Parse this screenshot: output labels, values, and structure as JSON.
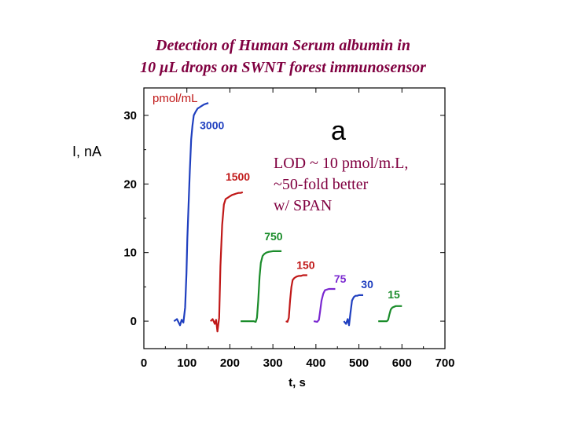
{
  "chart_data": {
    "type": "line",
    "title_lines": [
      "Detection of Human Serum albumin in",
      "10 μL drops on SWNT forest immunosensor"
    ],
    "xlabel": "t, s",
    "ylabel": "I, nA",
    "xlim": [
      0,
      700
    ],
    "ylim": [
      -4,
      34
    ],
    "xticks": [
      "0",
      "100",
      "200",
      "300",
      "400",
      "500",
      "600",
      "700"
    ],
    "yticks": [
      "0",
      "10",
      "20",
      "30"
    ],
    "panel_label": "a",
    "unit_label": "pmol/mL",
    "annotation_lines": [
      "LOD ~ 10 pmol/m.L,",
      "~50-fold better",
      "w/ SPAN"
    ],
    "annotation_color": "#800040",
    "series": [
      {
        "name": "3000",
        "color": "#1f3fbf",
        "label_x": 130,
        "label_y": 28,
        "x": [
          70,
          77,
          84,
          88,
          92,
          96,
          99,
          101,
          104,
          107,
          110,
          113,
          116,
          120,
          125,
          130,
          135,
          140,
          145,
          150
        ],
        "y": [
          0.0,
          0.3,
          -0.6,
          0.2,
          -0.2,
          2.0,
          7.0,
          12.0,
          17.0,
          22.0,
          26.5,
          28.5,
          30.0,
          30.5,
          31.0,
          31.2,
          31.4,
          31.6,
          31.7,
          31.8
        ]
      },
      {
        "name": "1500",
        "color": "#c01818",
        "label_x": 190,
        "label_y": 20.5,
        "x": [
          155,
          160,
          165,
          168,
          171,
          175,
          178,
          182,
          186,
          190,
          195,
          200,
          205,
          210,
          215,
          220,
          225,
          230
        ],
        "y": [
          0.0,
          0.3,
          -0.4,
          0.2,
          -1.5,
          0.5,
          8.0,
          14.0,
          17.0,
          17.8,
          18.0,
          18.2,
          18.4,
          18.5,
          18.6,
          18.7,
          18.7,
          18.8
        ]
      },
      {
        "name": "750",
        "color": "#1a8c2a",
        "label_x": 280,
        "label_y": 11.8,
        "x": [
          225,
          240,
          255,
          260,
          263,
          266,
          269,
          272,
          276,
          280,
          285,
          290,
          300,
          310,
          320
        ],
        "y": [
          0.0,
          0.0,
          0.0,
          -0.1,
          0.5,
          3.0,
          6.5,
          8.5,
          9.5,
          9.8,
          10.0,
          10.1,
          10.2,
          10.2,
          10.2
        ]
      },
      {
        "name": "150",
        "color": "#c01818",
        "label_x": 355,
        "label_y": 7.6,
        "x": [
          330,
          334,
          337,
          340,
          343,
          346,
          350,
          355,
          360,
          365,
          370,
          375,
          380
        ],
        "y": [
          0.0,
          -0.1,
          0.5,
          3.0,
          5.0,
          6.0,
          6.3,
          6.5,
          6.6,
          6.6,
          6.7,
          6.7,
          6.7
        ]
      },
      {
        "name": "75",
        "color": "#7a28d0",
        "label_x": 442,
        "label_y": 5.6,
        "x": [
          395,
          403,
          407,
          410,
          413,
          417,
          421,
          425,
          430,
          435,
          440,
          445
        ],
        "y": [
          0.0,
          -0.1,
          0.2,
          1.5,
          3.0,
          4.0,
          4.5,
          4.6,
          4.7,
          4.7,
          4.7,
          4.7
        ]
      },
      {
        "name": "30",
        "color": "#1f3fbf",
        "label_x": 505,
        "label_y": 4.8,
        "x": [
          465,
          470,
          474,
          477,
          480,
          484,
          488,
          492,
          496,
          500,
          505,
          510
        ],
        "y": [
          0.0,
          -0.4,
          0.3,
          -0.6,
          1.0,
          3.0,
          3.5,
          3.7,
          3.7,
          3.8,
          3.8,
          3.8
        ]
      },
      {
        "name": "15",
        "color": "#1a8c2a",
        "label_x": 567,
        "label_y": 3.3,
        "x": [
          545,
          555,
          565,
          568,
          571,
          574,
          578,
          582,
          586,
          590,
          595,
          600
        ],
        "y": [
          0.0,
          0.0,
          0.0,
          0.2,
          1.0,
          1.7,
          2.0,
          2.1,
          2.2,
          2.2,
          2.2,
          2.2
        ]
      }
    ]
  }
}
